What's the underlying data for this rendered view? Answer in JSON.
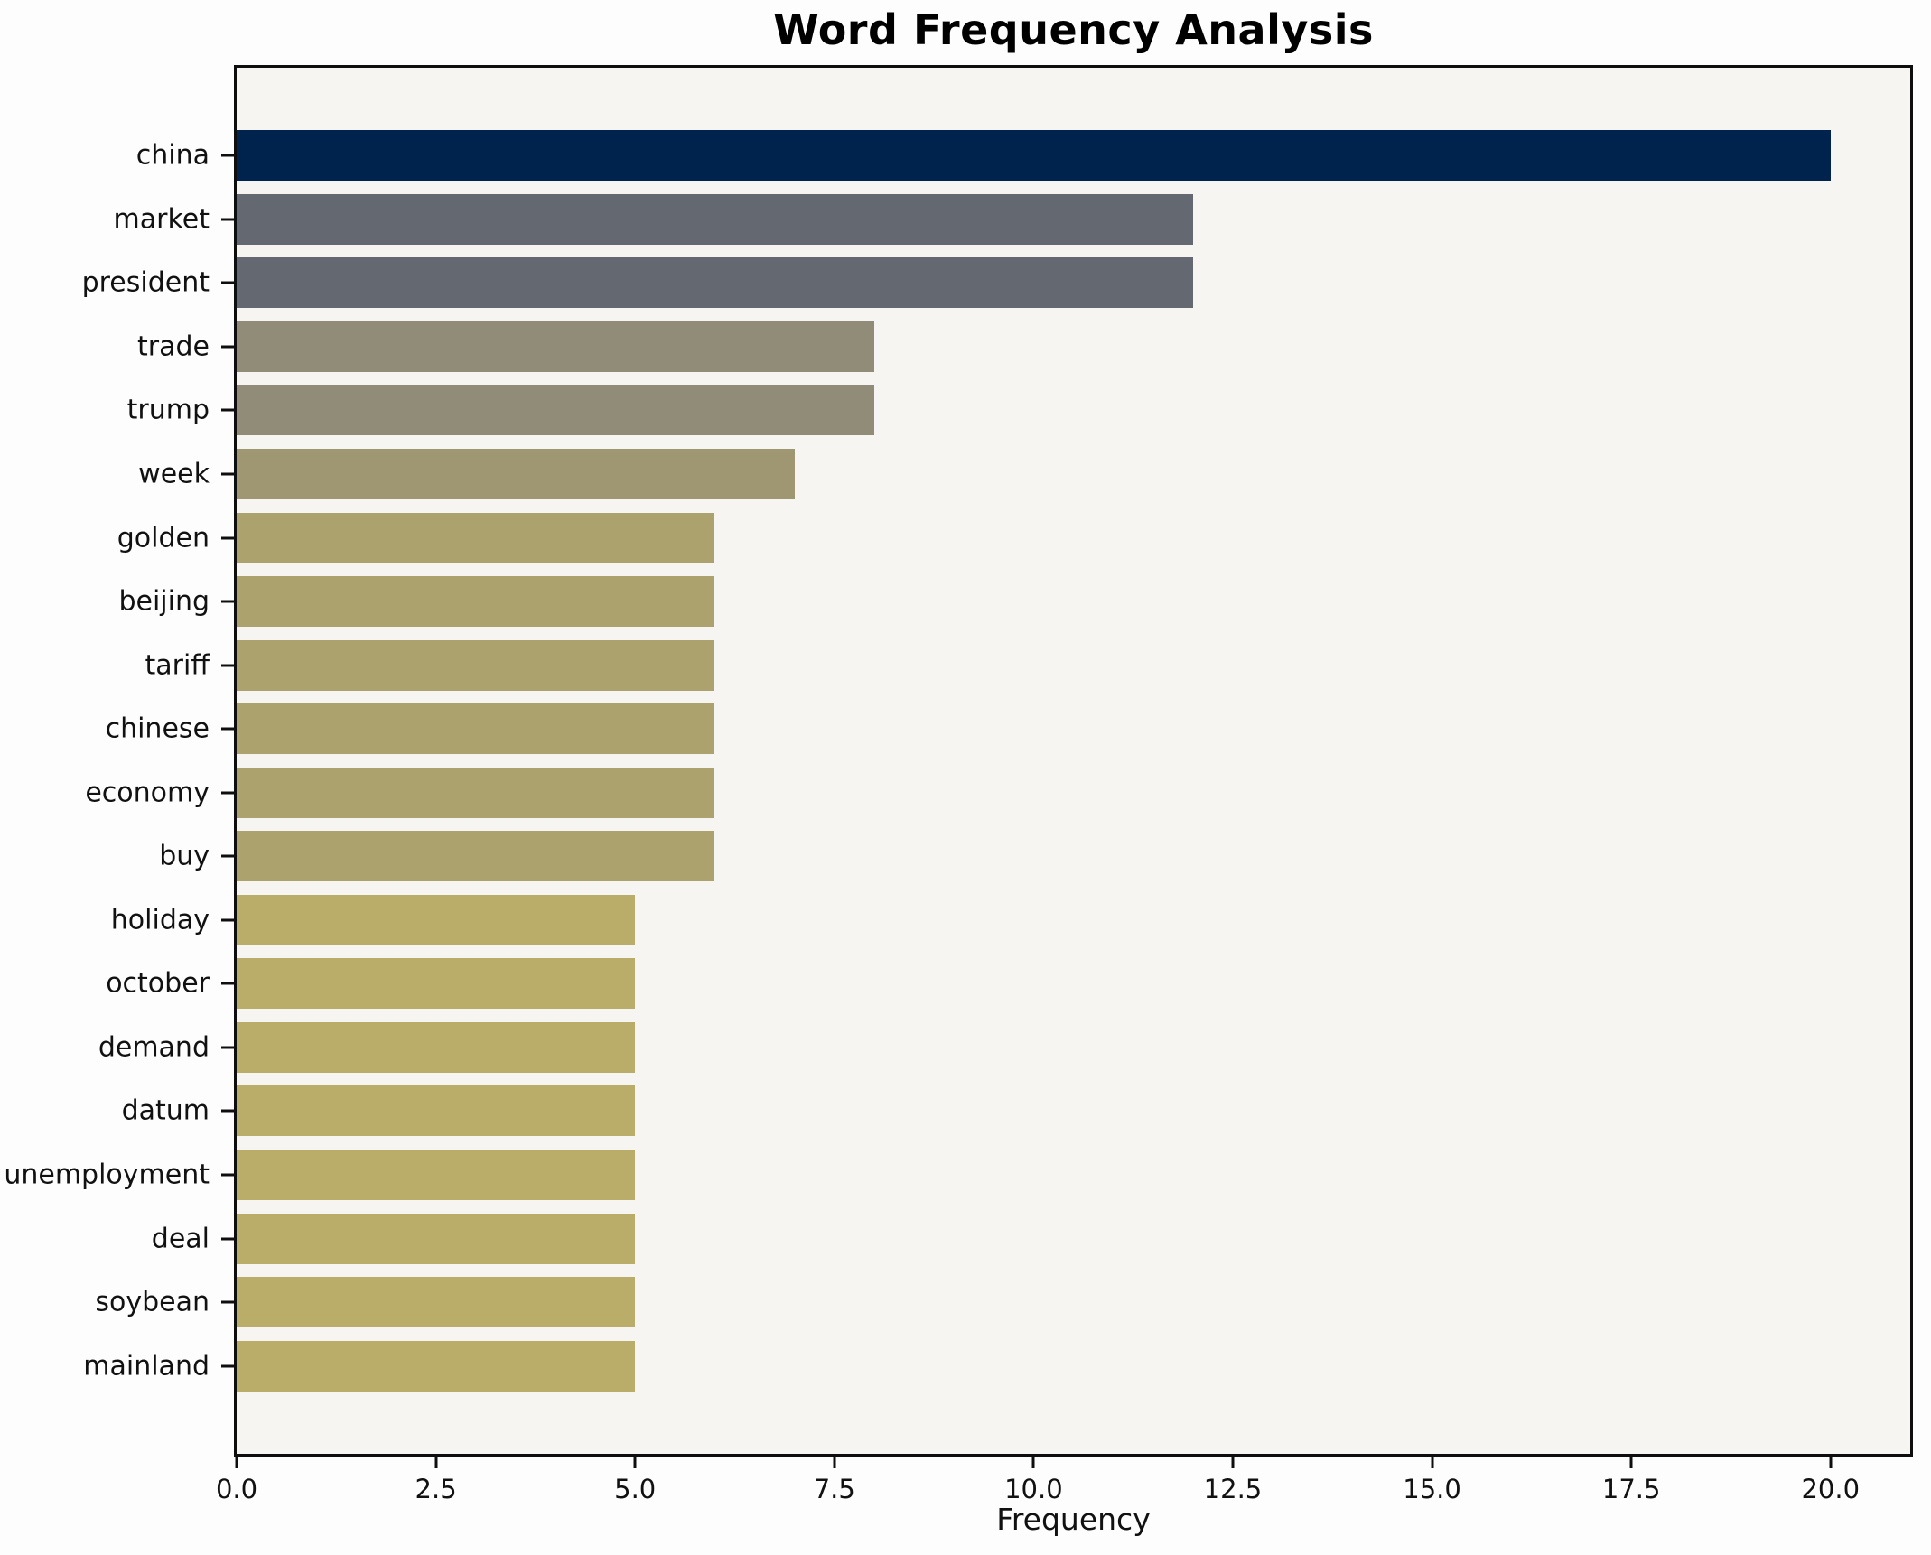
{
  "chart_data": {
    "type": "bar",
    "orientation": "horizontal",
    "title": "Word Frequency Analysis",
    "xlabel": "Frequency",
    "ylabel": "",
    "categories": [
      "china",
      "market",
      "president",
      "trade",
      "trump",
      "week",
      "golden",
      "beijing",
      "tariff",
      "chinese",
      "economy",
      "buy",
      "holiday",
      "october",
      "demand",
      "datum",
      "unemployment",
      "deal",
      "soybean",
      "mainland"
    ],
    "values": [
      20,
      12,
      12,
      8,
      8,
      7,
      6,
      6,
      6,
      6,
      6,
      6,
      5,
      5,
      5,
      5,
      5,
      5,
      5,
      5
    ],
    "bar_colors": [
      "#00234E",
      "#646870",
      "#646870",
      "#918C77",
      "#918C77",
      "#9E9772",
      "#ABA26E",
      "#ABA26E",
      "#ABA26E",
      "#ABA26E",
      "#ABA26E",
      "#ABA26E",
      "#BAAD69",
      "#BAAD69",
      "#BAAD69",
      "#BAAD69",
      "#BAAD69",
      "#BAAD69",
      "#BAAD69",
      "#BAAD69"
    ],
    "xlim": [
      0,
      21
    ],
    "xtick_values": [
      0,
      2.5,
      5,
      7.5,
      10,
      12.5,
      15,
      17.5,
      20
    ],
    "xticks": [
      "0.0",
      "2.5",
      "5.0",
      "7.5",
      "10.0",
      "12.5",
      "15.0",
      "17.5",
      "20.0"
    ],
    "grid": false,
    "legend": "none",
    "plot_background": "#f6f5f2",
    "figure_background": "#fdfdfd",
    "spine_color": "#0e0e0e",
    "text_color": "#111111"
  }
}
